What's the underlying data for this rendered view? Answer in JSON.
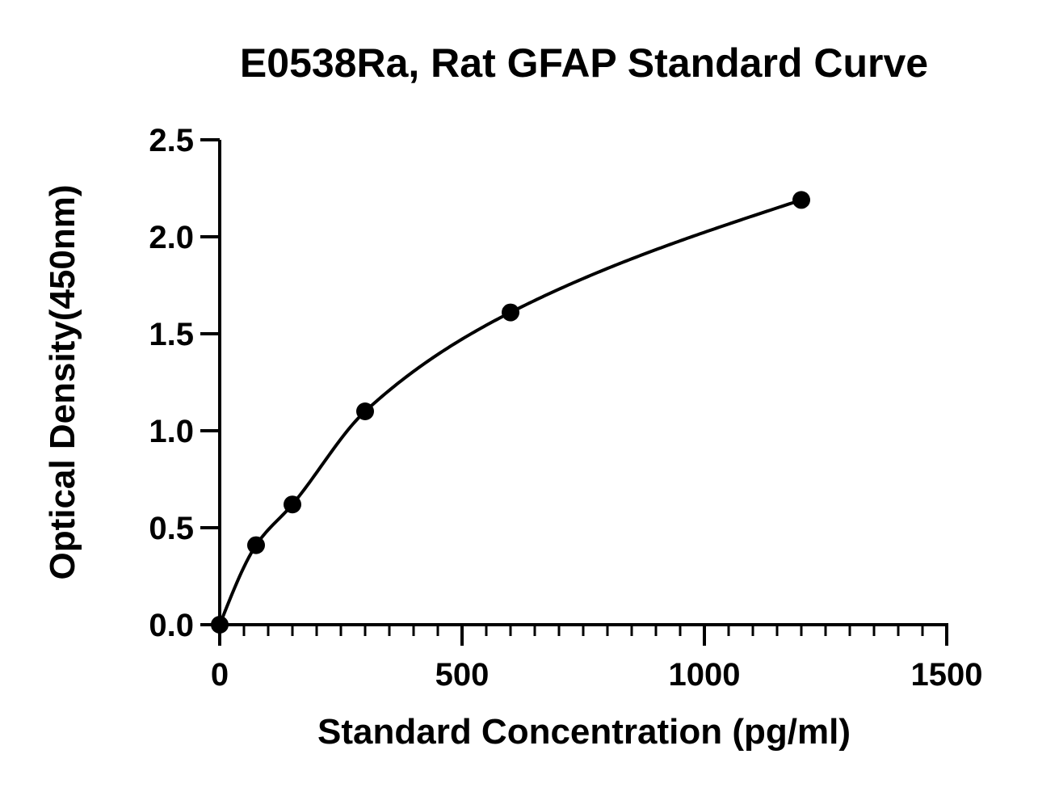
{
  "chart_data": {
    "type": "scatter",
    "title": "E0538Ra, Rat GFAP Standard Curve",
    "xlabel": "Standard Concentration (pg/ml)",
    "ylabel": "Optical Density(450nm)",
    "xlim": [
      0,
      1500
    ],
    "ylim": [
      0,
      2.5
    ],
    "x_ticks": [
      "0",
      "500",
      "1000",
      "1500"
    ],
    "y_ticks": [
      "0.0",
      "0.5",
      "1.0",
      "1.5",
      "2.0",
      "2.5"
    ],
    "x_minor_step": 50,
    "y_minor_step": 0.5,
    "grid": false,
    "legend": "none",
    "series": [
      {
        "points": [
          {
            "x": 0,
            "y": 0.0
          },
          {
            "x": 75,
            "y": 0.41
          },
          {
            "x": 150,
            "y": 0.62
          },
          {
            "x": 300,
            "y": 1.1
          },
          {
            "x": 600,
            "y": 1.61
          },
          {
            "x": 1200,
            "y": 2.19
          }
        ],
        "fit": "curve",
        "color": "#000000"
      }
    ]
  }
}
